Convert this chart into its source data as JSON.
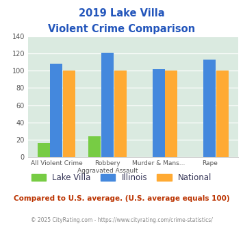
{
  "title_line1": "2019 Lake Villa",
  "title_line2": "Violent Crime Comparison",
  "title_color": "#2255bb",
  "x_labels_row1": [
    "All Violent Crime",
    "Robbery",
    "Murder & Mans...",
    ""
  ],
  "x_labels_row2": [
    "",
    "Aggravated Assault",
    "",
    "Rape"
  ],
  "lake_villa": [
    16,
    24,
    0,
    0
  ],
  "illinois": [
    108,
    121,
    102,
    113
  ],
  "national": [
    100,
    100,
    100,
    100
  ],
  "lake_villa_color": "#77cc44",
  "illinois_color": "#4488dd",
  "national_color": "#ffaa33",
  "ylim": [
    0,
    140
  ],
  "yticks": [
    0,
    20,
    40,
    60,
    80,
    100,
    120,
    140
  ],
  "bg_color": "#daeae0",
  "footer_text": "Compared to U.S. average. (U.S. average equals 100)",
  "footer_color": "#bb3300",
  "copyright_text": "© 2025 CityRating.com - https://www.cityrating.com/crime-statistics/",
  "copyright_color": "#888888",
  "legend_text_color": "#333355"
}
